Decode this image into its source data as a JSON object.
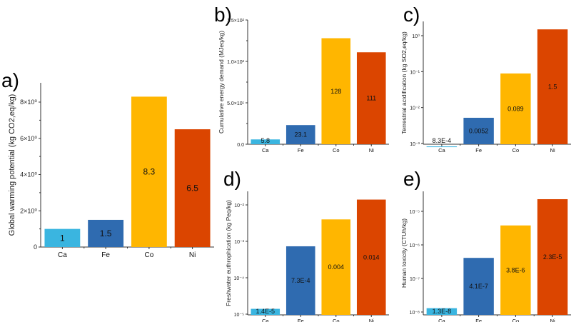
{
  "chart_data": [
    {
      "id": "a",
      "panel_label": "a)",
      "type": "bar",
      "scale": "linear",
      "categories": [
        "Ca",
        "Fe",
        "Co",
        "Ni"
      ],
      "values": [
        1,
        1.5,
        8.3,
        6.5
      ],
      "data_labels": [
        "1",
        "1.5",
        "8.3",
        "6.5"
      ],
      "ylabel": "Global warming potential (kg CO2,eq/kg)",
      "ylim": [
        0,
        9
      ],
      "yticks": [
        0,
        2,
        4,
        6,
        8
      ],
      "ytick_labels": [
        "0",
        "2×10⁰",
        "4×10⁰",
        "6×10⁰",
        "8×10⁰"
      ]
    },
    {
      "id": "b",
      "panel_label": "b)",
      "type": "bar",
      "scale": "linear",
      "categories": [
        "Ca",
        "Fe",
        "Co",
        "Ni"
      ],
      "values": [
        5.8,
        23.1,
        128,
        111
      ],
      "data_labels": [
        "5.8",
        "23.1",
        "128",
        "111"
      ],
      "ylabel": "Cumulative energy demand (MJeq/kg)",
      "ylim": [
        0,
        150
      ],
      "yticks": [
        0,
        50,
        100,
        150
      ],
      "ytick_labels": [
        "0.0",
        "5.0×10¹",
        "1.0×10²",
        "1.5×10²"
      ]
    },
    {
      "id": "c",
      "panel_label": "c)",
      "type": "bar",
      "scale": "log",
      "categories": [
        "Ca",
        "Fe",
        "Co",
        "Ni"
      ],
      "values": [
        0.00083,
        0.0052,
        0.089,
        1.5
      ],
      "data_labels": [
        "8.3E-4",
        "0.0052",
        "0.089",
        "1.5"
      ],
      "ylabel": "Terrestrial acidification (kg SO2,eq/kg)",
      "ylim": [
        0.0005,
        4
      ],
      "yticks": [
        0.001,
        0.01,
        0.1,
        1
      ],
      "ytick_labels": [
        "10⁻³",
        "10⁻²",
        "10⁻¹",
        "10⁰"
      ]
    },
    {
      "id": "d",
      "panel_label": "d)",
      "type": "bar",
      "scale": "log",
      "categories": [
        "Ca",
        "Fe",
        "Co",
        "Ni"
      ],
      "values": [
        1.4e-05,
        0.00073,
        0.004,
        0.014
      ],
      "data_labels": [
        "1.4E-5",
        "7.3E-4",
        "0.004",
        "0.014"
      ],
      "ylabel": "Freshwater euthrophication (kg Peq/kg)",
      "ylim": [
        9.5e-06,
        0.025
      ],
      "yticks": [
        1e-05,
        0.0001,
        0.001,
        0.01
      ],
      "ytick_labels": [
        "10⁻⁵",
        "10⁻⁴",
        "10⁻³",
        "10⁻²"
      ]
    },
    {
      "id": "e",
      "panel_label": "e)",
      "type": "bar",
      "scale": "log",
      "categories": [
        "Ca",
        "Fe",
        "Co",
        "Ni"
      ],
      "values": [
        1.3e-08,
        4.1e-07,
        3.8e-06,
        2.3e-05
      ],
      "data_labels": [
        "1.3E-8",
        "4.1E-7",
        "3.8E-6",
        "2.3E-5"
      ],
      "ylabel": "Human toxicity (CTUh/kg)",
      "ylim": [
        9e-09,
        4e-05
      ],
      "yticks": [
        1e-08,
        1e-07,
        1e-06,
        1e-05
      ],
      "ytick_labels": [
        "10⁻⁸",
        "10⁻⁷",
        "10⁻⁶",
        "10⁻⁵"
      ]
    }
  ],
  "colors": {
    "Ca": "#3ab5e0",
    "Fe": "#2f6bb0",
    "Co": "#ffb600",
    "Ni": "#db4500",
    "axis": "#333333"
  }
}
